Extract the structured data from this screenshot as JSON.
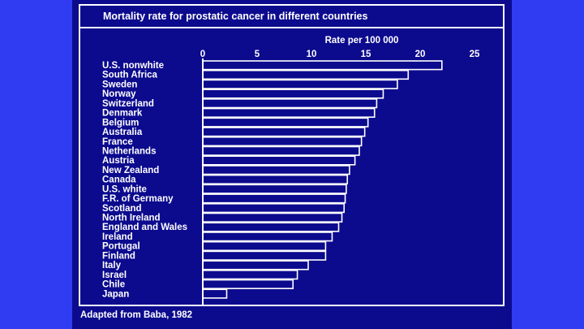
{
  "chart_data": {
    "type": "bar",
    "orientation": "horizontal",
    "title": "Mortality rate for prostatic cancer in different countries",
    "xlabel": "Rate per 100 000",
    "xlim": [
      0,
      28
    ],
    "xticks": [
      0,
      5,
      10,
      15,
      20,
      25
    ],
    "categories": [
      "U.S. nonwhite",
      "South Africa",
      "Sweden",
      "Norway",
      "Switzerland",
      "Denmark",
      "Belgium",
      "Australia",
      "France",
      "Netherlands",
      "Austria",
      "New Zealand",
      "Canada",
      "U.S. white",
      "F.R. of Germany",
      "Scotland",
      "North Ireland",
      "England and Wales",
      "Ireland",
      "Portugal",
      "Finland",
      "Italy",
      "Israel",
      "Chile",
      "Japan"
    ],
    "values": [
      22.0,
      18.9,
      17.9,
      16.6,
      16.0,
      15.8,
      15.2,
      14.9,
      14.6,
      14.4,
      14.0,
      13.5,
      13.3,
      13.2,
      13.1,
      13.0,
      12.8,
      12.5,
      11.9,
      11.3,
      11.3,
      9.7,
      8.7,
      8.3,
      2.2
    ],
    "source": "Adapted from Baba, 1982"
  }
}
